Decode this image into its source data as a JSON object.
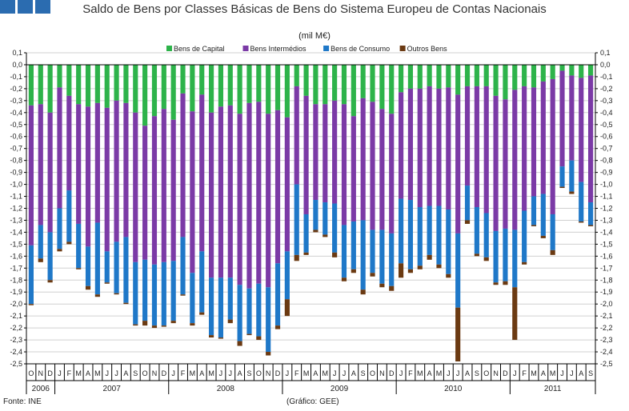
{
  "chart_data": {
    "type": "bar",
    "stacked": true,
    "title": "Saldo de Bens por Classes Básicas de Bens do Sistema Europeu de Contas Nacionais",
    "unit": "(mil M€)",
    "ylim": [
      -2.5,
      0.1
    ],
    "y_ticks": [
      "0,1",
      "0,0",
      "-0,1",
      "-0,2",
      "-0,3",
      "-0,4",
      "-0,5",
      "-0,6",
      "-0,7",
      "-0,8",
      "-0,9",
      "-1,0",
      "-1,1",
      "-1,2",
      "-1,3",
      "-1,4",
      "-1,5",
      "-1,6",
      "-1,7",
      "-1,8",
      "-1,9",
      "-2,0",
      "-2,1",
      "-2,2",
      "-2,3",
      "-2,4",
      "-2,5"
    ],
    "grid": true,
    "legend_position": "top",
    "colors": {
      "capital": "#2db34a",
      "intermedios": "#7b3aa6",
      "consumo": "#1f78c8",
      "outros": "#6b3a12",
      "axis": "#000000",
      "grid": "#d0d0d0"
    },
    "categories": [
      "O",
      "N",
      "D",
      "J",
      "F",
      "M",
      "A",
      "M",
      "J",
      "J",
      "A",
      "S",
      "O",
      "N",
      "D",
      "J",
      "F",
      "M",
      "A",
      "M",
      "J",
      "J",
      "A",
      "S",
      "O",
      "N",
      "D",
      "J",
      "F",
      "M",
      "A",
      "M",
      "J",
      "J",
      "A",
      "S",
      "O",
      "N",
      "D",
      "J",
      "F",
      "M",
      "A",
      "M",
      "J",
      "J",
      "A",
      "S",
      "O",
      "N",
      "D",
      "J",
      "F",
      "M",
      "A",
      "M",
      "J",
      "J",
      "A",
      "S"
    ],
    "years": [
      {
        "label": "2006",
        "start": 0,
        "count": 3
      },
      {
        "label": "2007",
        "start": 3,
        "count": 12
      },
      {
        "label": "2008",
        "start": 15,
        "count": 12
      },
      {
        "label": "2009",
        "start": 27,
        "count": 12
      },
      {
        "label": "2010",
        "start": 39,
        "count": 12
      },
      {
        "label": "2011",
        "start": 51,
        "count": 9
      }
    ],
    "series": [
      {
        "name": "Bens de Capital",
        "key": "capital",
        "values": [
          -0.34,
          -0.33,
          -0.4,
          -0.19,
          -0.26,
          -0.33,
          -0.35,
          -0.32,
          -0.36,
          -0.3,
          -0.32,
          -0.4,
          -0.51,
          -0.43,
          -0.37,
          -0.46,
          -0.24,
          -0.39,
          -0.25,
          -0.4,
          -0.35,
          -0.34,
          -0.41,
          -0.32,
          -0.31,
          -0.41,
          -0.38,
          -0.44,
          -0.18,
          -0.26,
          -0.33,
          -0.33,
          -0.3,
          -0.33,
          -0.43,
          -0.28,
          -0.31,
          -0.37,
          -0.41,
          -0.23,
          -0.2,
          -0.2,
          -0.18,
          -0.2,
          -0.19,
          -0.25,
          -0.18,
          -0.18,
          -0.18,
          -0.26,
          -0.29,
          -0.21,
          -0.18,
          -0.19,
          -0.14,
          -0.12,
          -0.05,
          -0.09,
          -0.11,
          -0.09
        ]
      },
      {
        "name": "Bens Intermédios",
        "key": "intermedios",
        "values": [
          -1.17,
          -1.01,
          -1.0,
          -1.01,
          -0.79,
          -1.0,
          -1.17,
          -1.0,
          -1.2,
          -1.18,
          -1.12,
          -1.25,
          -1.12,
          -1.24,
          -1.28,
          -1.18,
          -1.2,
          -1.35,
          -1.31,
          -1.38,
          -1.43,
          -1.44,
          -1.43,
          -1.55,
          -1.52,
          -1.45,
          -1.28,
          -1.12,
          -0.82,
          -0.99,
          -0.8,
          -0.82,
          -0.86,
          -1.01,
          -0.88,
          -1.02,
          -1.07,
          -1.01,
          -1.0,
          -0.89,
          -0.93,
          -0.99,
          -1.0,
          -0.98,
          -1.02,
          -1.16,
          -0.83,
          -1.01,
          -1.06,
          -1.13,
          -1.08,
          -1.17,
          -1.04,
          -0.91,
          -0.94,
          -1.13,
          -0.8,
          -0.71,
          -0.87,
          -1.06
        ]
      },
      {
        "name": "Bens de Consumo",
        "key": "consumo",
        "values": [
          -0.49,
          -0.28,
          -0.4,
          -0.34,
          -0.43,
          -0.37,
          -0.33,
          -0.6,
          -0.26,
          -0.43,
          -0.55,
          -0.52,
          -0.51,
          -0.51,
          -0.53,
          -0.5,
          -0.48,
          -0.42,
          -0.51,
          -0.48,
          -0.5,
          -0.35,
          -0.47,
          -0.38,
          -0.44,
          -0.54,
          -0.52,
          -0.4,
          -0.59,
          -0.32,
          -0.25,
          -0.27,
          -0.41,
          -0.44,
          -0.4,
          -0.58,
          -0.36,
          -0.45,
          -0.44,
          -0.54,
          -0.58,
          -0.49,
          -0.41,
          -0.49,
          -0.54,
          -0.62,
          -0.29,
          -0.39,
          -0.37,
          -0.43,
          -0.44,
          -0.48,
          -0.43,
          -0.24,
          -0.35,
          -0.3,
          -0.17,
          -0.26,
          -0.33,
          -0.19
        ]
      },
      {
        "name": "Outros Bens",
        "key": "outros",
        "values": [
          -0.01,
          -0.03,
          -0.02,
          -0.02,
          -0.02,
          -0.01,
          -0.03,
          -0.02,
          -0.01,
          -0.01,
          -0.01,
          -0.01,
          -0.04,
          -0.02,
          -0.01,
          -0.02,
          -0.01,
          -0.02,
          -0.02,
          -0.02,
          -0.01,
          -0.03,
          -0.04,
          -0.01,
          -0.03,
          -0.03,
          -0.03,
          -0.14,
          -0.05,
          -0.02,
          -0.02,
          -0.02,
          -0.04,
          -0.03,
          -0.03,
          -0.04,
          -0.03,
          -0.03,
          -0.04,
          -0.12,
          -0.03,
          -0.03,
          -0.04,
          -0.03,
          -0.03,
          -0.45,
          -0.03,
          -0.02,
          -0.03,
          -0.02,
          -0.03,
          -0.44,
          -0.02,
          -0.01,
          -0.02,
          -0.04,
          -0.01,
          -0.02,
          -0.01,
          -0.01
        ]
      }
    ]
  },
  "footer": {
    "source": "Fonte: INE",
    "note": "(Gráfico: GEE)"
  }
}
